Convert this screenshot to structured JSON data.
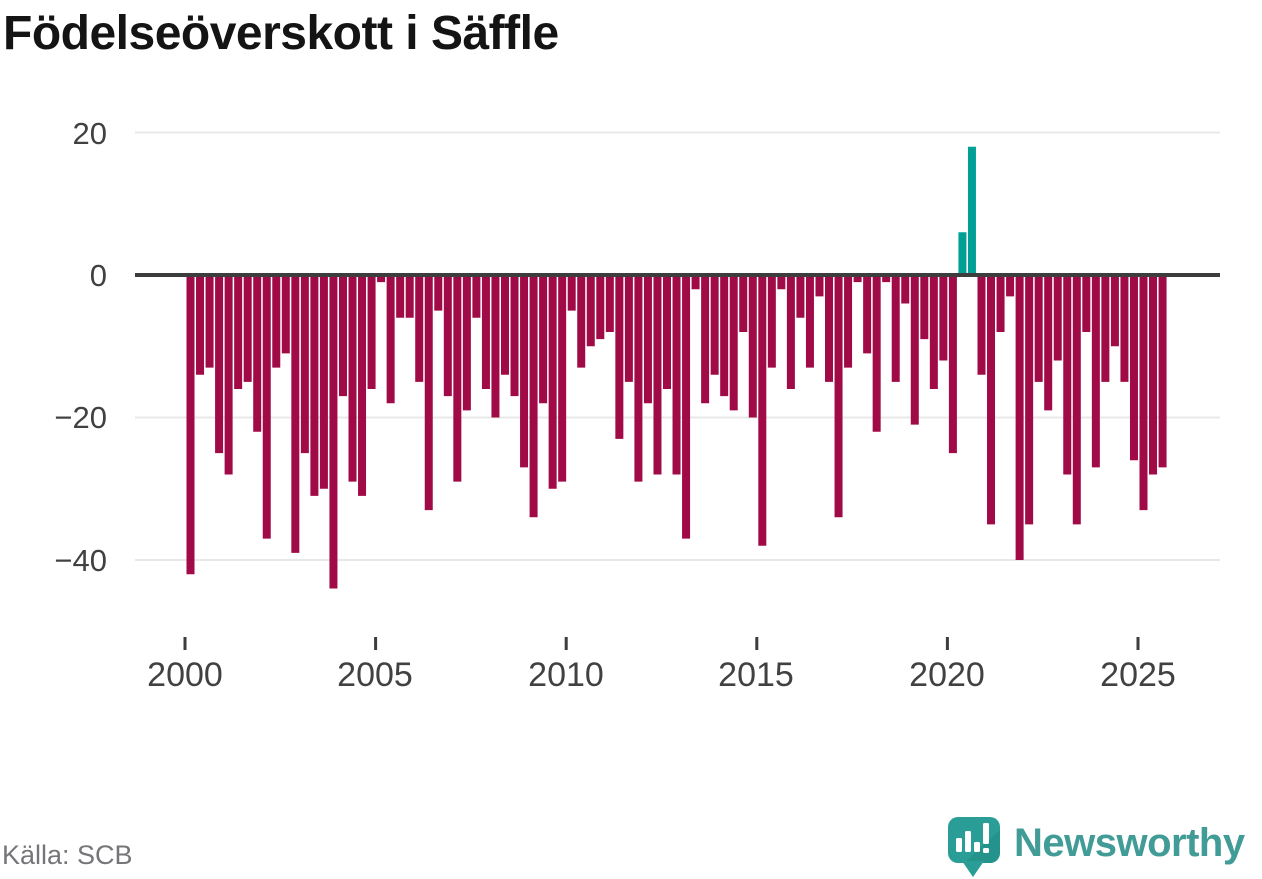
{
  "title": "Födelseöverskott i Säffle",
  "source": "Källa: SCB",
  "logo": {
    "text": "Newsworthy",
    "icon": "newsworthy-bubble-barchart-icon"
  },
  "colors": {
    "negative_bar": "#a00a46",
    "positive_bar": "#00a096",
    "zero_axis": "#3d3d3d",
    "gridline": "#e8e8e8",
    "tick_label": "#414141",
    "source_text": "#76767a",
    "logo_teal": "#419b96",
    "logo_icon": "#2a9e96"
  },
  "chart_data": {
    "type": "bar",
    "title": "Födelseöverskott i Säffle",
    "period": "quarterly",
    "start_period": "2000Q1",
    "end_period": "2025Q3",
    "values": [
      -42,
      -14,
      -13,
      -25,
      -28,
      -16,
      -15,
      -22,
      -37,
      -13,
      -11,
      -39,
      -25,
      -31,
      -30,
      -44,
      -17,
      -29,
      -31,
      -16,
      -1,
      -18,
      -6,
      -6,
      -15,
      -33,
      -5,
      -17,
      -29,
      -19,
      -6,
      -16,
      -20,
      -14,
      -17,
      -27,
      -34,
      -18,
      -30,
      -29,
      -5,
      -13,
      -10,
      -9,
      -8,
      -23,
      -15,
      -29,
      -18,
      -28,
      -16,
      -28,
      -37,
      -2,
      -18,
      -14,
      -17,
      -19,
      -8,
      -20,
      -38,
      -13,
      -2,
      -16,
      -6,
      -13,
      -3,
      -15,
      -34,
      -13,
      -1,
      -11,
      -22,
      -1,
      -15,
      -4,
      -21,
      -9,
      -16,
      -12,
      -25,
      6,
      18,
      -14,
      -35,
      -8,
      -3,
      -40,
      -35,
      -15,
      -19,
      -12,
      -28,
      -35,
      -8,
      -27,
      -15,
      -10,
      -15,
      -26,
      -33,
      -28,
      -27
    ],
    "y_ticks": [
      20,
      0,
      -20,
      -40
    ],
    "y_tick_labels": [
      "20",
      "0",
      "−20",
      "−40"
    ],
    "x_ticks": [
      {
        "label": "2000",
        "quarter_index": 0
      },
      {
        "label": "2005",
        "quarter_index": 20
      },
      {
        "label": "2010",
        "quarter_index": 40
      },
      {
        "label": "2015",
        "quarter_index": 60
      },
      {
        "label": "2020",
        "quarter_index": 80
      },
      {
        "label": "2025",
        "quarter_index": 100
      }
    ],
    "ylim": [
      -47,
      22
    ],
    "grid": true,
    "legend": false,
    "xlabel": "",
    "ylabel": ""
  }
}
